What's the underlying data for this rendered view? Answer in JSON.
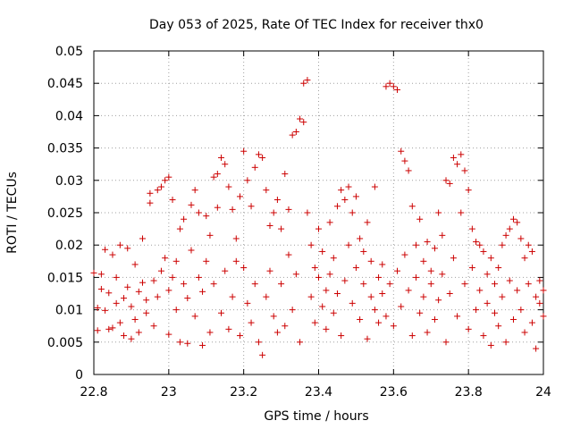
{
  "chart_data": {
    "type": "scatter",
    "title": "Day 053 of 2025, Rate Of TEC Index for receiver thx0",
    "xlabel": "GPS time / hours",
    "ylabel": "ROTI / TECUs",
    "xlim": [
      22.8,
      24.0
    ],
    "ylim": [
      0,
      0.05
    ],
    "xticks": [
      22.8,
      23.0,
      23.2,
      23.4,
      23.6,
      23.8,
      24.0
    ],
    "xtick_labels": [
      "22.8",
      "23",
      "23.2",
      "23.4",
      "23.6",
      "23.8",
      "24"
    ],
    "yticks": [
      0,
      0.005,
      0.01,
      0.015,
      0.02,
      0.025,
      0.03,
      0.035,
      0.04,
      0.045,
      0.05
    ],
    "ytick_labels": [
      "0",
      "0.005",
      "0.01",
      "0.015",
      "0.02",
      "0.025",
      "0.03",
      "0.035",
      "0.04",
      "0.045",
      "0.05"
    ],
    "grid": true,
    "marker": "+",
    "color": "#cc0000",
    "series": [
      {
        "points": [
          [
            22.8,
            0.0157
          ],
          [
            22.81,
            0.0103
          ],
          [
            22.81,
            0.0068
          ],
          [
            22.82,
            0.0132
          ],
          [
            22.82,
            0.0155
          ],
          [
            22.83,
            0.0193
          ],
          [
            22.83,
            0.0099
          ],
          [
            22.84,
            0.007
          ],
          [
            22.84,
            0.0126
          ],
          [
            22.85,
            0.0185
          ],
          [
            22.85,
            0.0072
          ],
          [
            22.86,
            0.011
          ],
          [
            22.86,
            0.015
          ],
          [
            22.87,
            0.02
          ],
          [
            22.87,
            0.008
          ],
          [
            22.88,
            0.0118
          ],
          [
            22.88,
            0.006
          ],
          [
            22.89,
            0.0195
          ],
          [
            22.89,
            0.0135
          ],
          [
            22.9,
            0.0055
          ],
          [
            22.9,
            0.0105
          ],
          [
            22.91,
            0.017
          ],
          [
            22.91,
            0.0085
          ],
          [
            22.92,
            0.0128
          ],
          [
            22.92,
            0.0065
          ],
          [
            22.93,
            0.021
          ],
          [
            22.93,
            0.0142
          ],
          [
            22.94,
            0.0095
          ],
          [
            22.94,
            0.0115
          ],
          [
            22.95,
            0.0265
          ],
          [
            22.95,
            0.028
          ],
          [
            22.96,
            0.0145
          ],
          [
            22.96,
            0.0075
          ],
          [
            22.97,
            0.0285
          ],
          [
            22.97,
            0.012
          ],
          [
            22.98,
            0.029
          ],
          [
            22.98,
            0.016
          ],
          [
            22.99,
            0.03
          ],
          [
            22.99,
            0.018
          ],
          [
            23.0,
            0.0305
          ],
          [
            23.0,
            0.013
          ],
          [
            23.0,
            0.0062
          ],
          [
            23.01,
            0.027
          ],
          [
            23.01,
            0.015
          ],
          [
            23.02,
            0.0175
          ],
          [
            23.02,
            0.01
          ],
          [
            23.03,
            0.0225
          ],
          [
            23.03,
            0.005
          ],
          [
            23.04,
            0.014
          ],
          [
            23.04,
            0.024
          ],
          [
            23.05,
            0.0048
          ],
          [
            23.05,
            0.0118
          ],
          [
            23.06,
            0.0262
          ],
          [
            23.06,
            0.0192
          ],
          [
            23.07,
            0.0285
          ],
          [
            23.07,
            0.009
          ],
          [
            23.08,
            0.025
          ],
          [
            23.08,
            0.015
          ],
          [
            23.09,
            0.0045
          ],
          [
            23.09,
            0.0128
          ],
          [
            23.1,
            0.0245
          ],
          [
            23.1,
            0.0175
          ],
          [
            23.11,
            0.0065
          ],
          [
            23.11,
            0.0215
          ],
          [
            23.12,
            0.014
          ],
          [
            23.12,
            0.0305
          ],
          [
            23.13,
            0.0258
          ],
          [
            23.13,
            0.031
          ],
          [
            23.14,
            0.0335
          ],
          [
            23.14,
            0.0095
          ],
          [
            23.15,
            0.0325
          ],
          [
            23.15,
            0.016
          ],
          [
            23.16,
            0.029
          ],
          [
            23.16,
            0.007
          ],
          [
            23.17,
            0.0255
          ],
          [
            23.17,
            0.012
          ],
          [
            23.18,
            0.021
          ],
          [
            23.18,
            0.0175
          ],
          [
            23.19,
            0.0275
          ],
          [
            23.19,
            0.006
          ],
          [
            23.2,
            0.0345
          ],
          [
            23.2,
            0.0165
          ],
          [
            23.21,
            0.03
          ],
          [
            23.21,
            0.011
          ],
          [
            23.22,
            0.026
          ],
          [
            23.22,
            0.008
          ],
          [
            23.23,
            0.032
          ],
          [
            23.23,
            0.014
          ],
          [
            23.24,
            0.034
          ],
          [
            23.24,
            0.005
          ],
          [
            23.25,
            0.0335
          ],
          [
            23.25,
            0.003
          ],
          [
            23.26,
            0.0285
          ],
          [
            23.26,
            0.012
          ],
          [
            23.27,
            0.023
          ],
          [
            23.27,
            0.016
          ],
          [
            23.28,
            0.025
          ],
          [
            23.28,
            0.009
          ],
          [
            23.29,
            0.027
          ],
          [
            23.29,
            0.0065
          ],
          [
            23.3,
            0.0225
          ],
          [
            23.3,
            0.014
          ],
          [
            23.31,
            0.031
          ],
          [
            23.31,
            0.0075
          ],
          [
            23.32,
            0.0255
          ],
          [
            23.32,
            0.0185
          ],
          [
            23.33,
            0.037
          ],
          [
            23.33,
            0.01
          ],
          [
            23.34,
            0.0375
          ],
          [
            23.34,
            0.0155
          ],
          [
            23.35,
            0.0395
          ],
          [
            23.35,
            0.005
          ],
          [
            23.36,
            0.045
          ],
          [
            23.36,
            0.039
          ],
          [
            23.37,
            0.0455
          ],
          [
            23.37,
            0.025
          ],
          [
            23.38,
            0.012
          ],
          [
            23.38,
            0.02
          ],
          [
            23.39,
            0.0165
          ],
          [
            23.39,
            0.008
          ],
          [
            23.4,
            0.015
          ],
          [
            23.4,
            0.0225
          ],
          [
            23.41,
            0.0105
          ],
          [
            23.41,
            0.019
          ],
          [
            23.42,
            0.013
          ],
          [
            23.42,
            0.007
          ],
          [
            23.43,
            0.0235
          ],
          [
            23.43,
            0.0155
          ],
          [
            23.44,
            0.018
          ],
          [
            23.44,
            0.0095
          ],
          [
            23.45,
            0.026
          ],
          [
            23.45,
            0.0125
          ],
          [
            23.46,
            0.0285
          ],
          [
            23.46,
            0.006
          ],
          [
            23.47,
            0.027
          ],
          [
            23.47,
            0.0145
          ],
          [
            23.48,
            0.029
          ],
          [
            23.48,
            0.02
          ],
          [
            23.49,
            0.025
          ],
          [
            23.49,
            0.011
          ],
          [
            23.5,
            0.0275
          ],
          [
            23.5,
            0.0165
          ],
          [
            23.51,
            0.021
          ],
          [
            23.51,
            0.0085
          ],
          [
            23.52,
            0.019
          ],
          [
            23.52,
            0.014
          ],
          [
            23.53,
            0.0235
          ],
          [
            23.53,
            0.0055
          ],
          [
            23.54,
            0.0175
          ],
          [
            23.54,
            0.012
          ],
          [
            23.55,
            0.029
          ],
          [
            23.55,
            0.01
          ],
          [
            23.56,
            0.015
          ],
          [
            23.56,
            0.008
          ],
          [
            23.57,
            0.0125
          ],
          [
            23.57,
            0.017
          ],
          [
            23.58,
            0.0445
          ],
          [
            23.58,
            0.009
          ],
          [
            23.59,
            0.045
          ],
          [
            23.59,
            0.014
          ],
          [
            23.6,
            0.0445
          ],
          [
            23.6,
            0.0075
          ],
          [
            23.61,
            0.044
          ],
          [
            23.61,
            0.016
          ],
          [
            23.62,
            0.0345
          ],
          [
            23.62,
            0.0105
          ],
          [
            23.63,
            0.033
          ],
          [
            23.63,
            0.0185
          ],
          [
            23.64,
            0.0315
          ],
          [
            23.64,
            0.013
          ],
          [
            23.65,
            0.026
          ],
          [
            23.65,
            0.006
          ],
          [
            23.66,
            0.02
          ],
          [
            23.66,
            0.015
          ],
          [
            23.67,
            0.024
          ],
          [
            23.67,
            0.0095
          ],
          [
            23.68,
            0.0175
          ],
          [
            23.68,
            0.012
          ],
          [
            23.69,
            0.0205
          ],
          [
            23.69,
            0.0065
          ],
          [
            23.7,
            0.016
          ],
          [
            23.7,
            0.014
          ],
          [
            23.71,
            0.0195
          ],
          [
            23.71,
            0.0085
          ],
          [
            23.72,
            0.025
          ],
          [
            23.72,
            0.0115
          ],
          [
            23.73,
            0.0215
          ],
          [
            23.73,
            0.0155
          ],
          [
            23.74,
            0.03
          ],
          [
            23.74,
            0.005
          ],
          [
            23.75,
            0.0295
          ],
          [
            23.75,
            0.0125
          ],
          [
            23.76,
            0.0335
          ],
          [
            23.76,
            0.018
          ],
          [
            23.77,
            0.0325
          ],
          [
            23.77,
            0.009
          ],
          [
            23.78,
            0.034
          ],
          [
            23.78,
            0.025
          ],
          [
            23.79,
            0.0315
          ],
          [
            23.79,
            0.014
          ],
          [
            23.8,
            0.0285
          ],
          [
            23.8,
            0.007
          ],
          [
            23.81,
            0.0225
          ],
          [
            23.81,
            0.0165
          ],
          [
            23.82,
            0.0205
          ],
          [
            23.82,
            0.01
          ],
          [
            23.83,
            0.02
          ],
          [
            23.83,
            0.013
          ],
          [
            23.84,
            0.019
          ],
          [
            23.84,
            0.006
          ],
          [
            23.85,
            0.0155
          ],
          [
            23.85,
            0.011
          ],
          [
            23.86,
            0.018
          ],
          [
            23.86,
            0.0045
          ],
          [
            23.87,
            0.014
          ],
          [
            23.87,
            0.0095
          ],
          [
            23.88,
            0.0165
          ],
          [
            23.88,
            0.0075
          ],
          [
            23.89,
            0.02
          ],
          [
            23.89,
            0.012
          ],
          [
            23.9,
            0.0215
          ],
          [
            23.9,
            0.005
          ],
          [
            23.91,
            0.0225
          ],
          [
            23.91,
            0.0145
          ],
          [
            23.92,
            0.024
          ],
          [
            23.92,
            0.0085
          ],
          [
            23.93,
            0.0235
          ],
          [
            23.93,
            0.013
          ],
          [
            23.94,
            0.021
          ],
          [
            23.94,
            0.01
          ],
          [
            23.95,
            0.018
          ],
          [
            23.95,
            0.0065
          ],
          [
            23.96,
            0.02
          ],
          [
            23.96,
            0.014
          ],
          [
            23.97,
            0.019
          ],
          [
            23.97,
            0.008
          ],
          [
            23.98,
            0.012
          ],
          [
            23.98,
            0.004
          ],
          [
            23.99,
            0.0145
          ],
          [
            23.99,
            0.011
          ],
          [
            24.0,
            0.013
          ],
          [
            24.0,
            0.009
          ]
        ]
      }
    ]
  }
}
